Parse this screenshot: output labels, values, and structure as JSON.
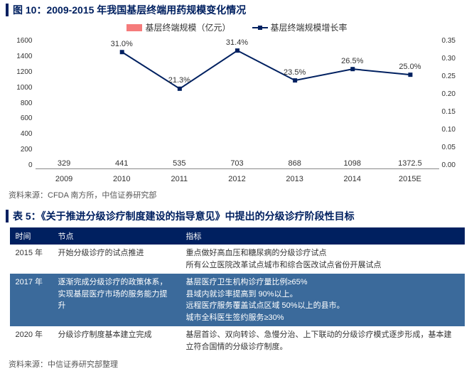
{
  "figure": {
    "title": "图 10：2009-2015 年我国基层终端用药规模变化情况",
    "legend": {
      "bar": "基层终端规模（亿元）",
      "line": "基层终端规模增长率"
    },
    "chart": {
      "type": "bar+line",
      "categories": [
        "2009",
        "2010",
        "2011",
        "2012",
        "2013",
        "2014",
        "2015E"
      ],
      "bar_values": [
        329,
        441,
        535,
        703,
        868,
        1098,
        1372.5
      ],
      "bar_labels": [
        "329",
        "441",
        "535",
        "703",
        "868",
        "1098",
        "1372.5"
      ],
      "bar_color": "#f57b7b",
      "line_values": [
        null,
        0.31,
        0.213,
        0.314,
        0.235,
        0.265,
        0.25
      ],
      "line_labels": [
        "",
        "31.0%",
        "21.3%",
        "31.4%",
        "23.5%",
        "26.5%",
        "25.0%"
      ],
      "line_color": "#002060",
      "y1_ticks": [
        "1600",
        "1400",
        "1200",
        "1000",
        "800",
        "600",
        "400",
        "200",
        "0"
      ],
      "y1_max": 1600,
      "y2_ticks": [
        "0.35",
        "0.30",
        "0.25",
        "0.20",
        "0.15",
        "0.10",
        "0.05",
        "0.00"
      ],
      "y2_max": 0.35,
      "background_color": "#ffffff",
      "grid_color": "#cccccc"
    },
    "source": "资料来源：CFDA 南方所，中信证券研究部"
  },
  "table": {
    "title": "表 5：《关于推进分级诊疗制度建设的指导意见》中提出的分级诊疗阶段性目标",
    "columns": [
      "时间",
      "节点",
      "指标"
    ],
    "rows": [
      {
        "time": "2015 年",
        "node": "开始分级诊疗的试点推进",
        "indicator": "重点做好高血压和糖尿病的分级诊疗试点\n所有公立医院改革试点城市和综合医改试点省份开展试点"
      },
      {
        "time": "2017 年",
        "node": "逐渐完成分级诊疗的政策体系，实现基层医疗市场的服务能力提升",
        "indicator": "基层医疗卫生机构诊疗量比例≥65%\n县域内就诊率提高到 90%以上。\n远程医疗服务覆盖试点区域 50%以上的县市。\n城市全科医生签约服务≥30%"
      },
      {
        "time": "2020 年",
        "node": "分级诊疗制度基本建立完成",
        "indicator": "基层首诊、双向转诊、急慢分治、上下联动的分级诊疗模式逐步形成，基本建立符合国情的分级诊疗制度。"
      }
    ],
    "header_bg": "#002060",
    "row_alt_bg": "#3b6a9b",
    "source": "资料来源：中信证券研究部整理"
  }
}
